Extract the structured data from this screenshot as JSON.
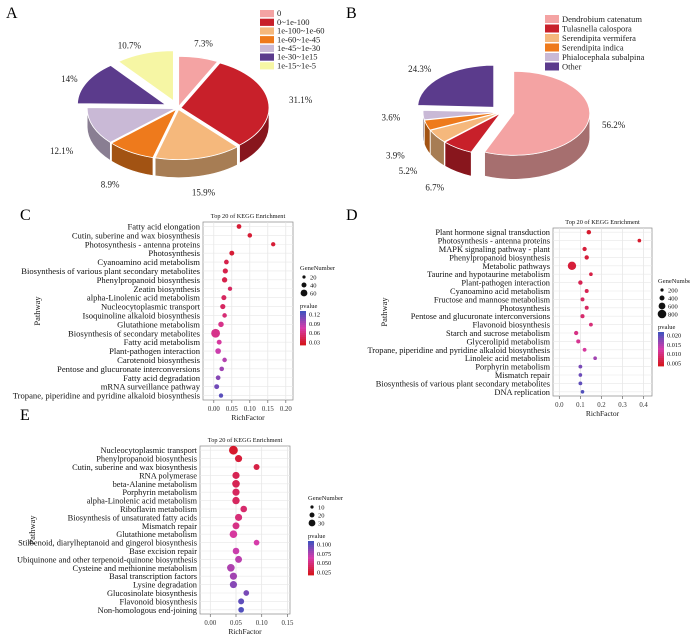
{
  "panels": {
    "A": {
      "letter": "A",
      "legend": [
        "0",
        "0~1e-100",
        "1e-100~1e-60",
        "1e-60~1e-45",
        "1e-45~1e-30",
        "1e-30~1e15",
        "1e-15~1e-5"
      ],
      "colors": [
        "#f4a3a3",
        "#c8202a",
        "#f5b87c",
        "#ee7a1c",
        "#c9b9d6",
        "#5b3b8c",
        "#f6f6a4"
      ],
      "values": [
        7.3,
        31.1,
        15.9,
        8.9,
        12.1,
        14.0,
        10.7
      ],
      "labels": [
        "7.3%",
        "31.1%",
        "15.9%",
        "8.9%",
        "12.1%",
        "14%",
        "10.7%"
      ],
      "explode": [
        0,
        0,
        0,
        0,
        0,
        1,
        1
      ]
    },
    "B": {
      "letter": "B",
      "legend": [
        "Dendrobium catenatum",
        "Tulasnella calospora",
        "Serendipita vermifera",
        "Serendipita indica",
        "Phialocephala subalpina",
        "Other"
      ],
      "colors": [
        "#f4a3a3",
        "#c8202a",
        "#f5b87c",
        "#ee7a1c",
        "#c9b9d6",
        "#5b3b8c"
      ],
      "values": [
        56.2,
        6.7,
        5.2,
        3.9,
        3.6,
        24.3
      ],
      "labels": [
        "56.2%",
        "6.7%",
        "5.2%",
        "3.9%",
        "3.6%",
        "24.3%"
      ],
      "explode": [
        1,
        0,
        0,
        0,
        0,
        1
      ]
    },
    "C": {
      "letter": "C",
      "title": "Top 20 of KEGG Enrichment",
      "ylabel": "Pathway",
      "xlabel": "RichFactor",
      "xticks": [
        "0.00",
        "0.05",
        "0.10",
        "0.15",
        "0.20"
      ],
      "xmin": -0.03,
      "xmax": 0.22,
      "size_title": "GeneNumber",
      "size_levels": [
        "20",
        "40",
        "60"
      ],
      "color_title": "pvalue",
      "color_levels": [
        "0.12",
        "0.09",
        "0.06",
        "0.03"
      ],
      "cmax": 0.13,
      "pathways": [
        "Fatty acid elongation",
        "Cutin, suberine and wax biosynthesis",
        "Photosynthesis - antenna proteins",
        "Photosynthesis",
        "Cyanoamino acid metabolism",
        "Biosynthesis of various plant secondary metabolites",
        "Phenylpropanoid biosynthesis",
        "Zeatin biosynthesis",
        "alpha-Linolenic acid metabolism",
        "Nucleocytoplasmic transport",
        "Isoquinoline alkaloid biosynthesis",
        "Glutathione metabolism",
        "Biosynthesis of secondary metabolites",
        "Fatty acid metabolism",
        "Plant-pathogen interaction",
        "Carotenoid biosynthesis",
        "Pentose and glucuronate interconversions",
        "Fatty acid degradation",
        "mRNA surveillance pathway",
        "Tropane, piperidine and pyridine alkaloid biosynthesis"
      ],
      "rich": [
        0.07,
        0.1,
        0.165,
        0.05,
        0.035,
        0.032,
        0.03,
        0.045,
        0.028,
        0.025,
        0.03,
        0.02,
        0.005,
        0.015,
        0.012,
        0.03,
        0.022,
        0.012,
        0.008,
        0.02
      ],
      "count": [
        5,
        4,
        3,
        6,
        5,
        8,
        9,
        3,
        7,
        8,
        4,
        10,
        55,
        6,
        12,
        4,
        4,
        5,
        6,
        3
      ],
      "pvalue": [
        0.01,
        0.01,
        0.01,
        0.01,
        0.02,
        0.02,
        0.02,
        0.03,
        0.03,
        0.03,
        0.04,
        0.05,
        0.05,
        0.06,
        0.07,
        0.08,
        0.09,
        0.1,
        0.11,
        0.12
      ]
    },
    "D": {
      "letter": "D",
      "title": "Top 20 of KEGG Enrichment",
      "ylabel": "Pathway",
      "xlabel": "RichFactor",
      "xticks": [
        "0.0",
        "0.1",
        "0.2",
        "0.3",
        "0.4"
      ],
      "xmin": -0.03,
      "xmax": 0.44,
      "size_title": "GeneNumber",
      "size_levels": [
        "200",
        "400",
        "600",
        "800"
      ],
      "color_title": "pvalue",
      "color_levels": [
        "0.020",
        "0.015",
        "0.010",
        "0.005"
      ],
      "cmax": 0.022,
      "pathways": [
        "Plant hormone signal transduction",
        "Photosynthesis - antenna proteins",
        "MAPK signaling pathway - plant",
        "Phenylpropanoid biosynthesis",
        "Metabolic pathways",
        "Taurine and hypotaurine metabolism",
        "Plant-pathogen interaction",
        "Cyanoamino acid metabolism",
        "Fructose and mannose metabolism",
        "Photosynthesis",
        "Pentose and glucuronate interconversions",
        "Flavonoid biosynthesis",
        "Starch and sucrose metabolism",
        "Glycerolipid metabolism",
        "Tropane, piperidine and pyridine alkaloid biosynthesis",
        "Linoleic acid metabolism",
        "Porphyrin metabolism",
        "Mismatch repair",
        "Biosynthesis of various plant secondary metabolites",
        "DNA replication"
      ],
      "rich": [
        0.14,
        0.38,
        0.12,
        0.13,
        0.06,
        0.15,
        0.1,
        0.13,
        0.11,
        0.13,
        0.11,
        0.15,
        0.08,
        0.09,
        0.12,
        0.17,
        0.1,
        0.1,
        0.1,
        0.11
      ],
      "count": [
        80,
        20,
        60,
        70,
        900,
        20,
        70,
        40,
        40,
        40,
        50,
        30,
        60,
        50,
        30,
        20,
        30,
        20,
        30,
        20
      ],
      "pvalue": [
        0.001,
        0.001,
        0.002,
        0.002,
        0.002,
        0.003,
        0.004,
        0.004,
        0.005,
        0.005,
        0.006,
        0.007,
        0.008,
        0.009,
        0.01,
        0.015,
        0.018,
        0.019,
        0.02,
        0.021
      ]
    },
    "E": {
      "letter": "E",
      "title": "Top 20 of KEGG Enrichment",
      "ylabel": "Pathway",
      "xlabel": "RichFactor",
      "xticks": [
        "0.00",
        "0.05",
        "0.10",
        "0.15"
      ],
      "xmin": -0.02,
      "xmax": 0.155,
      "size_title": "GeneNumber",
      "size_levels": [
        "10",
        "20",
        "30"
      ],
      "color_title": "pvalue",
      "color_levels": [
        "0.100",
        "0.075",
        "0.050",
        "0.025"
      ],
      "cmax": 0.11,
      "pathways": [
        "Nucleocytoplasmic transport",
        "Phenylpropanoid biosynthesis",
        "Cutin, suberine and wax biosynthesis",
        "RNA polymerase",
        "beta-Alanine metabolism",
        "Porphyrin metabolism",
        "alpha-Linolenic acid metabolism",
        "Riboflavin metabolism",
        "Biosynthesis of unsaturated fatty acids",
        "Mismatch repair",
        "Glutathione metabolism",
        "Stilbenoid, diarylheptanoid and gingerol biosynthesis",
        "Base excision repair",
        "Ubiquinone and other terpenoid-quinone biosynthesis",
        "Cysteine and methionine metabolism",
        "Basal transcription factors",
        "Lysine degradation",
        "Glucosinolate biosynthesis",
        "Flavonoid biosynthesis",
        "Non-homologous end-joining"
      ],
      "rich": [
        0.045,
        0.055,
        0.09,
        0.05,
        0.05,
        0.05,
        0.05,
        0.065,
        0.055,
        0.05,
        0.045,
        0.09,
        0.05,
        0.055,
        0.04,
        0.045,
        0.045,
        0.07,
        0.06,
        0.06
      ],
      "count": [
        40,
        20,
        10,
        20,
        25,
        20,
        22,
        15,
        20,
        18,
        25,
        8,
        15,
        18,
        25,
        20,
        20,
        8,
        10,
        8
      ],
      "pvalue": [
        0.005,
        0.01,
        0.015,
        0.02,
        0.02,
        0.025,
        0.025,
        0.03,
        0.035,
        0.04,
        0.05,
        0.055,
        0.06,
        0.065,
        0.07,
        0.075,
        0.085,
        0.09,
        0.1,
        0.105
      ]
    }
  },
  "chart_data": [
    {
      "type": "pie",
      "panel": "A",
      "categories": [
        "0",
        "0~1e-100",
        "1e-100~1e-60",
        "1e-60~1e-45",
        "1e-45~1e-30",
        "1e-30~1e15",
        "1e-15~1e-5"
      ],
      "values": [
        7.3,
        31.1,
        15.9,
        8.9,
        12.1,
        14.0,
        10.7
      ],
      "unit": "%"
    },
    {
      "type": "pie",
      "panel": "B",
      "categories": [
        "Dendrobium catenatum",
        "Tulasnella calospora",
        "Serendipita vermifera",
        "Serendipita indica",
        "Phialocephala subalpina",
        "Other"
      ],
      "values": [
        56.2,
        6.7,
        5.2,
        3.9,
        3.6,
        24.3
      ],
      "unit": "%"
    },
    {
      "type": "scatter",
      "panel": "C",
      "title": "Top 20 of KEGG Enrichment",
      "xlabel": "RichFactor",
      "ylabel": "Pathway",
      "xlim": [
        -0.03,
        0.22
      ]
    },
    {
      "type": "scatter",
      "panel": "D",
      "title": "Top 20 of KEGG Enrichment",
      "xlabel": "RichFactor",
      "ylabel": "Pathway",
      "xlim": [
        -0.03,
        0.44
      ]
    },
    {
      "type": "scatter",
      "panel": "E",
      "title": "Top 20 of KEGG Enrichment",
      "xlabel": "RichFactor",
      "ylabel": "Pathway",
      "xlim": [
        -0.02,
        0.155
      ]
    }
  ]
}
